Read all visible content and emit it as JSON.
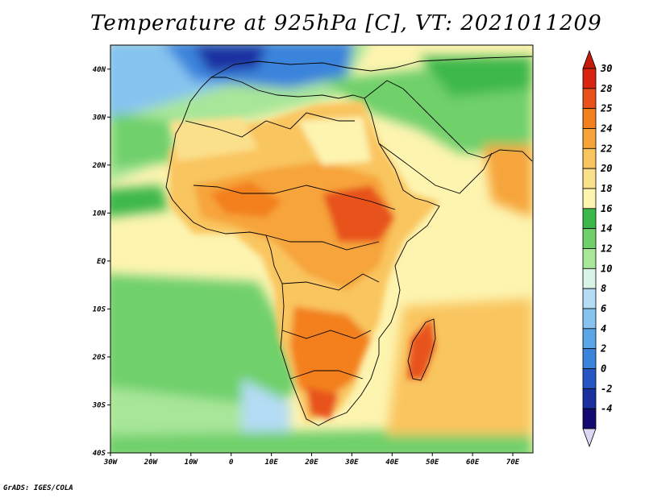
{
  "title": "Temperature at 925hPa [C], VT: 2021011209",
  "credit": "GrADS: IGES/COLA",
  "map": {
    "lon_range": [
      -30,
      75
    ],
    "lat_range": [
      -40,
      45
    ],
    "lat_ticks": [
      {
        "value": 40,
        "label": "40N"
      },
      {
        "value": 30,
        "label": "30N"
      },
      {
        "value": 20,
        "label": "20N"
      },
      {
        "value": 10,
        "label": "10N"
      },
      {
        "value": 0,
        "label": "EQ"
      },
      {
        "value": -10,
        "label": "10S"
      },
      {
        "value": -20,
        "label": "20S"
      },
      {
        "value": -30,
        "label": "30S"
      },
      {
        "value": -40,
        "label": "40S"
      }
    ],
    "lon_ticks": [
      {
        "value": -30,
        "label": "30W"
      },
      {
        "value": -20,
        "label": "20W"
      },
      {
        "value": -10,
        "label": "10W"
      },
      {
        "value": 0,
        "label": "0"
      },
      {
        "value": 10,
        "label": "10E"
      },
      {
        "value": 20,
        "label": "20E"
      },
      {
        "value": 30,
        "label": "30E"
      },
      {
        "value": 40,
        "label": "40E"
      },
      {
        "value": 50,
        "label": "50E"
      },
      {
        "value": 60,
        "label": "60E"
      },
      {
        "value": 70,
        "label": "70E"
      }
    ]
  },
  "colorbar": {
    "levels": [
      {
        "label": "30",
        "color": "#d9250f"
      },
      {
        "label": "28",
        "color": "#e8521a"
      },
      {
        "label": "25",
        "color": "#f3801f"
      },
      {
        "label": "24",
        "color": "#f6a43a"
      },
      {
        "label": "22",
        "color": "#f9c55e"
      },
      {
        "label": "20",
        "color": "#fbe08c"
      },
      {
        "label": "18",
        "color": "#fdf4b0"
      },
      {
        "label": "16",
        "color": "#3cb84a"
      },
      {
        "label": "14",
        "color": "#6fd06a"
      },
      {
        "label": "12",
        "color": "#a8e69a"
      },
      {
        "label": "10",
        "color": "#d8f4e6"
      },
      {
        "label": "8",
        "color": "#b4dcf4"
      },
      {
        "label": "6",
        "color": "#86c4ef"
      },
      {
        "label": "4",
        "color": "#5aa6e6"
      },
      {
        "label": "2",
        "color": "#3b84dc"
      },
      {
        "label": "0",
        "color": "#2656c4"
      },
      {
        "label": "-2",
        "color": "#1a2fa0"
      },
      {
        "label": "-4",
        "color": "#120a70"
      }
    ],
    "top_color": "#c41a0a",
    "bottom_color": "#dcd8f4"
  },
  "colors": {
    "ocean_north": "#a8e69a",
    "ocean_tropics": "#fdf4b0",
    "ocean_south": "#6fd06a",
    "land_hot": "#f3801f",
    "land_warm": "#f9c55e",
    "europe_cold": "#3b84dc",
    "coastline": "#000000"
  }
}
